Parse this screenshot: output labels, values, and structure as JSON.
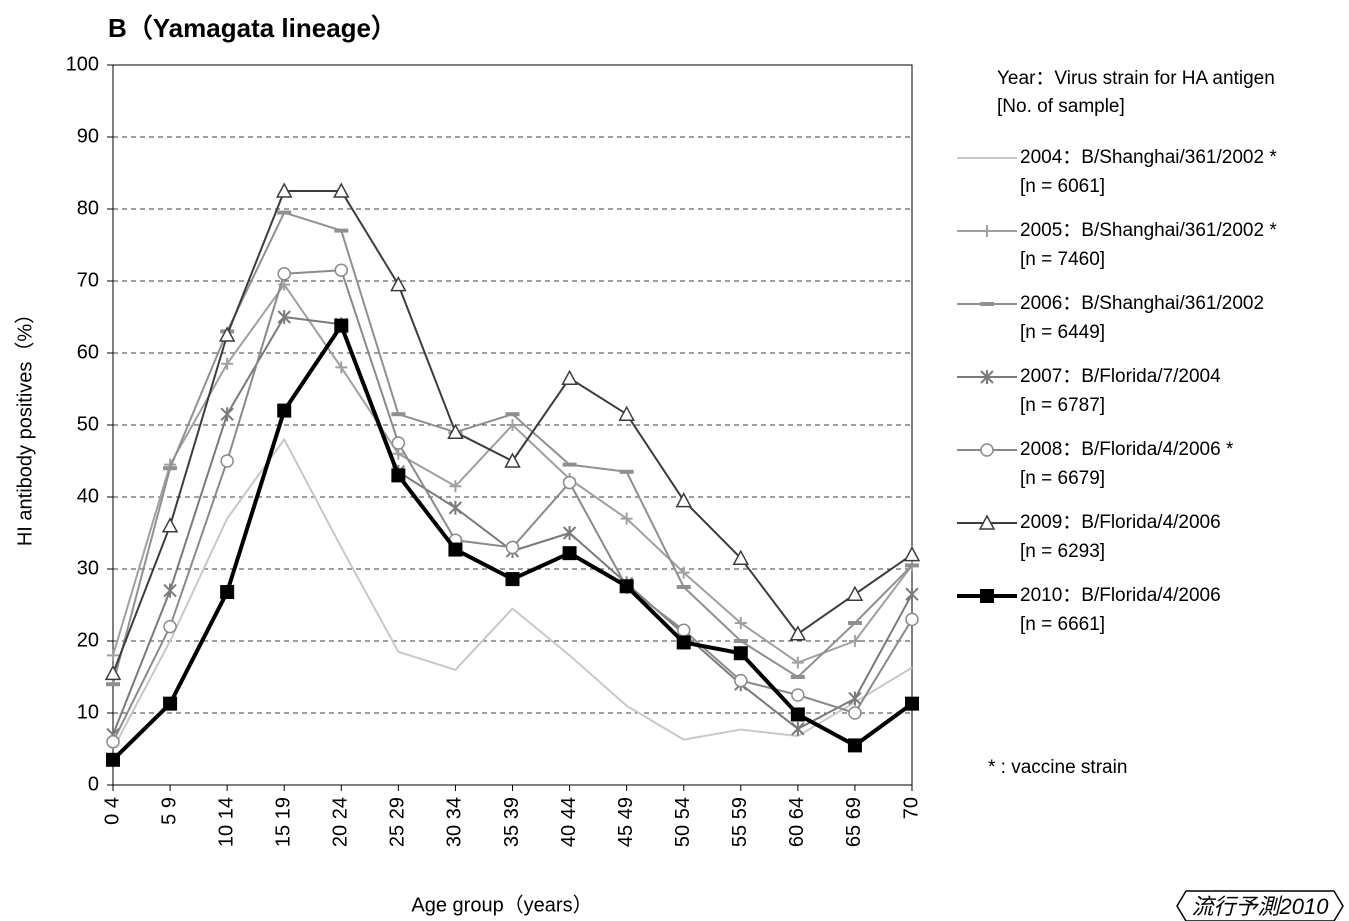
{
  "chart_data": {
    "type": "line",
    "title": "B（Yamagata lineage）",
    "x_label": "Age group（years）",
    "y_label": "HI antibody positives（%）",
    "legend_title": "Year：Virus strain for HA antigen",
    "legend_subtitle": "[No. of sample]",
    "note": "* : vaccine strain",
    "watermark": "流行予測2010",
    "categories": [
      "0 4",
      "5 9",
      "10 14",
      "15 19",
      "20 24",
      "25 29",
      "30 34",
      "35 39",
      "40 44",
      "45 49",
      "50 54",
      "55 59",
      "60 64",
      "65 69",
      "70"
    ],
    "ylim": [
      0,
      100
    ],
    "yticks": [
      0,
      10,
      20,
      30,
      40,
      50,
      60,
      70,
      80,
      90,
      100
    ],
    "grid": true,
    "legend": "right",
    "series": [
      {
        "name": "2004：B/Shanghai/361/2002 *",
        "sample": "[n = 6061]",
        "color": "#c8c8c8",
        "marker": "none",
        "width": 2,
        "values": [
          5,
          20,
          37,
          48,
          33,
          18.5,
          16,
          24.5,
          18,
          11,
          6.3,
          7.7,
          6.8,
          11.5,
          16.3
        ]
      },
      {
        "name": "2005：B/Shanghai/361/2002 *",
        "sample": "[n = 7460]",
        "color": "#a0a0a0",
        "marker": "plus",
        "width": 2,
        "values": [
          18,
          44.5,
          58.5,
          69.5,
          58,
          46,
          41.5,
          50,
          42.5,
          37,
          29.5,
          22.5,
          17,
          20,
          30.5
        ]
      },
      {
        "name": "2006：B/Shanghai/361/2002",
        "sample": "[n = 6449]",
        "color": "#909090",
        "marker": "dash",
        "width": 2,
        "values": [
          14,
          44,
          63,
          79.5,
          77,
          51.5,
          49,
          51.5,
          44.5,
          43.5,
          27.5,
          20,
          15,
          22.5,
          30.5
        ]
      },
      {
        "name": "2007：B/Florida/7/2004",
        "sample": "[n = 6787]",
        "color": "#7a7a7a",
        "marker": "star",
        "width": 2,
        "values": [
          7,
          27,
          51.5,
          65,
          64,
          43.5,
          38.5,
          32.5,
          35,
          28,
          21,
          14,
          7.8,
          12,
          26.5
        ]
      },
      {
        "name": "2008：B/Florida/4/2006 *",
        "sample": "[n = 6679]",
        "color": "#8a8a8a",
        "marker": "circle",
        "width": 2,
        "values": [
          6,
          22,
          45,
          71,
          71.5,
          47.5,
          34,
          33,
          42,
          27.5,
          21.5,
          14.5,
          12.5,
          10,
          23
        ]
      },
      {
        "name": "2009：B/Florida/4/2006",
        "sample": "[n = 6293]",
        "color": "#3c3c3c",
        "marker": "triangle",
        "width": 2,
        "values": [
          15.5,
          36,
          62.5,
          82.5,
          82.5,
          69.5,
          49,
          45,
          56.5,
          51.5,
          39.5,
          31.5,
          21,
          26.5,
          32
        ]
      },
      {
        "name": "2010：B/Florida/4/2006",
        "sample": "[n = 6661]",
        "color": "#000000",
        "marker": "square",
        "width": 4,
        "values": [
          3.5,
          11.3,
          26.8,
          52,
          63.8,
          43,
          32.7,
          28.6,
          32.2,
          27.6,
          19.8,
          18.3,
          9.8,
          5.5,
          11.3
        ]
      }
    ]
  }
}
